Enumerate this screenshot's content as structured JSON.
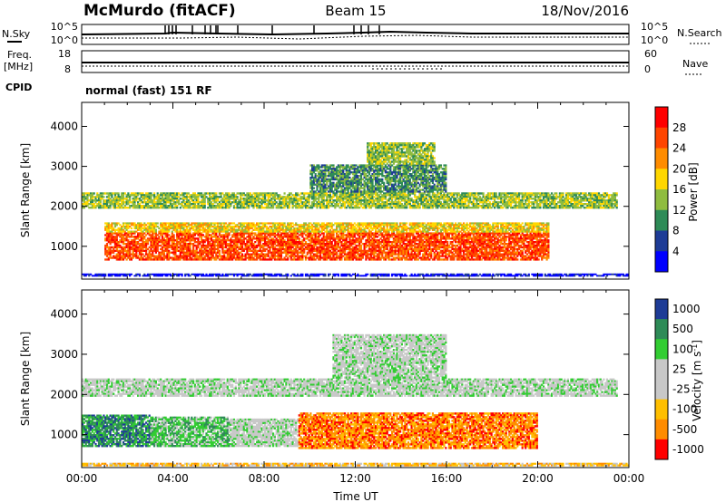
{
  "header": {
    "station": "McMurdo (fitACF)",
    "beam": "Beam 15",
    "date": "18/Nov/2016"
  },
  "top_panels": {
    "nsky_label": "N.Sky",
    "nsearch_label": "N.Search",
    "noise_ticks_left": [
      "10^5",
      "10^0"
    ],
    "noise_ticks_right": [
      "10^5",
      "10^0"
    ],
    "freq_label_line1": "Freq.",
    "freq_label_line2": "[MHz]",
    "freq_ticks": [
      "18",
      "8"
    ],
    "nave_label": "Nave",
    "nave_ticks": [
      "60",
      "0"
    ],
    "cpid_label": "CPID",
    "cpid_text": "normal (fast) 151 RF"
  },
  "chart_data": [
    {
      "type": "heatmap",
      "name": "power",
      "ylabel": "Slant Range [km]",
      "xlabel": "",
      "y_ticks": [
        1000,
        2000,
        3000,
        4000
      ],
      "ylim": [
        180,
        4600
      ],
      "xlim_hours": [
        0,
        24
      ],
      "colorbar_title": "Power [dB]",
      "colorbar_ticks": [
        "28",
        "24",
        "20",
        "16",
        "12",
        "8",
        "4"
      ],
      "colorbar_colors": [
        "#ff0000",
        "#ff4500",
        "#ff8c00",
        "#ffd700",
        "#8fbc3f",
        "#2e8b57",
        "#1e3c96",
        "#0000ff"
      ],
      "bands": [
        {
          "t0": 0.0,
          "t1": 24.0,
          "r0": 250,
          "r1": 320,
          "level": 7
        },
        {
          "t0": 1.0,
          "t1": 20.5,
          "r0": 650,
          "r1": 1350,
          "level": 1
        },
        {
          "t0": 1.0,
          "t1": 20.5,
          "r0": 1350,
          "r1": 1600,
          "level": 3
        },
        {
          "t0": 0.0,
          "t1": 23.5,
          "r0": 1950,
          "r1": 2350,
          "level": 4
        },
        {
          "t0": 10.0,
          "t1": 16.0,
          "r0": 2350,
          "r1": 3050,
          "level": 5
        },
        {
          "t0": 12.5,
          "t1": 15.5,
          "r0": 3050,
          "r1": 3600,
          "level": 4
        }
      ]
    },
    {
      "type": "heatmap",
      "name": "velocity",
      "ylabel": "Slant Range [km]",
      "xlabel": "Time UT",
      "y_ticks": [
        1000,
        2000,
        3000,
        4000
      ],
      "ylim": [
        180,
        4600
      ],
      "x_ticks": [
        "00:00",
        "04:00",
        "08:00",
        "12:00",
        "16:00",
        "20:00",
        "00:00"
      ],
      "xlim_hours": [
        0,
        24
      ],
      "colorbar_title": "Velocity [m s",
      "colorbar_title_sup": "-1",
      "colorbar_title_end": "]",
      "colorbar_ticks": [
        "1000",
        "500",
        "100",
        "25",
        "-25",
        "-100",
        "-500",
        "-1000"
      ],
      "colorbar_colors": [
        "#1e3c96",
        "#2e8b57",
        "#32cd32",
        "#c8c8c8",
        "#c8c8c8",
        "#ffbf00",
        "#ff8c00",
        "#ff0000"
      ],
      "bands": [
        {
          "t0": 0.0,
          "t1": 3.0,
          "r0": 700,
          "r1": 1500,
          "level": 1
        },
        {
          "t0": 3.0,
          "t1": 6.5,
          "r0": 700,
          "r1": 1450,
          "level": 2
        },
        {
          "t0": 6.5,
          "t1": 9.5,
          "r0": 700,
          "r1": 1400,
          "level": 3
        },
        {
          "t0": 9.5,
          "t1": 20.0,
          "r0": 650,
          "r1": 1550,
          "level": 6
        },
        {
          "t0": 0.0,
          "t1": 23.5,
          "r0": 1950,
          "r1": 2400,
          "level": 3
        },
        {
          "t0": 11.0,
          "t1": 16.0,
          "r0": 2400,
          "r1": 3500,
          "level": 3
        },
        {
          "t0": 0.0,
          "t1": 24.0,
          "r0": 220,
          "r1": 300,
          "level": 5
        }
      ]
    }
  ]
}
